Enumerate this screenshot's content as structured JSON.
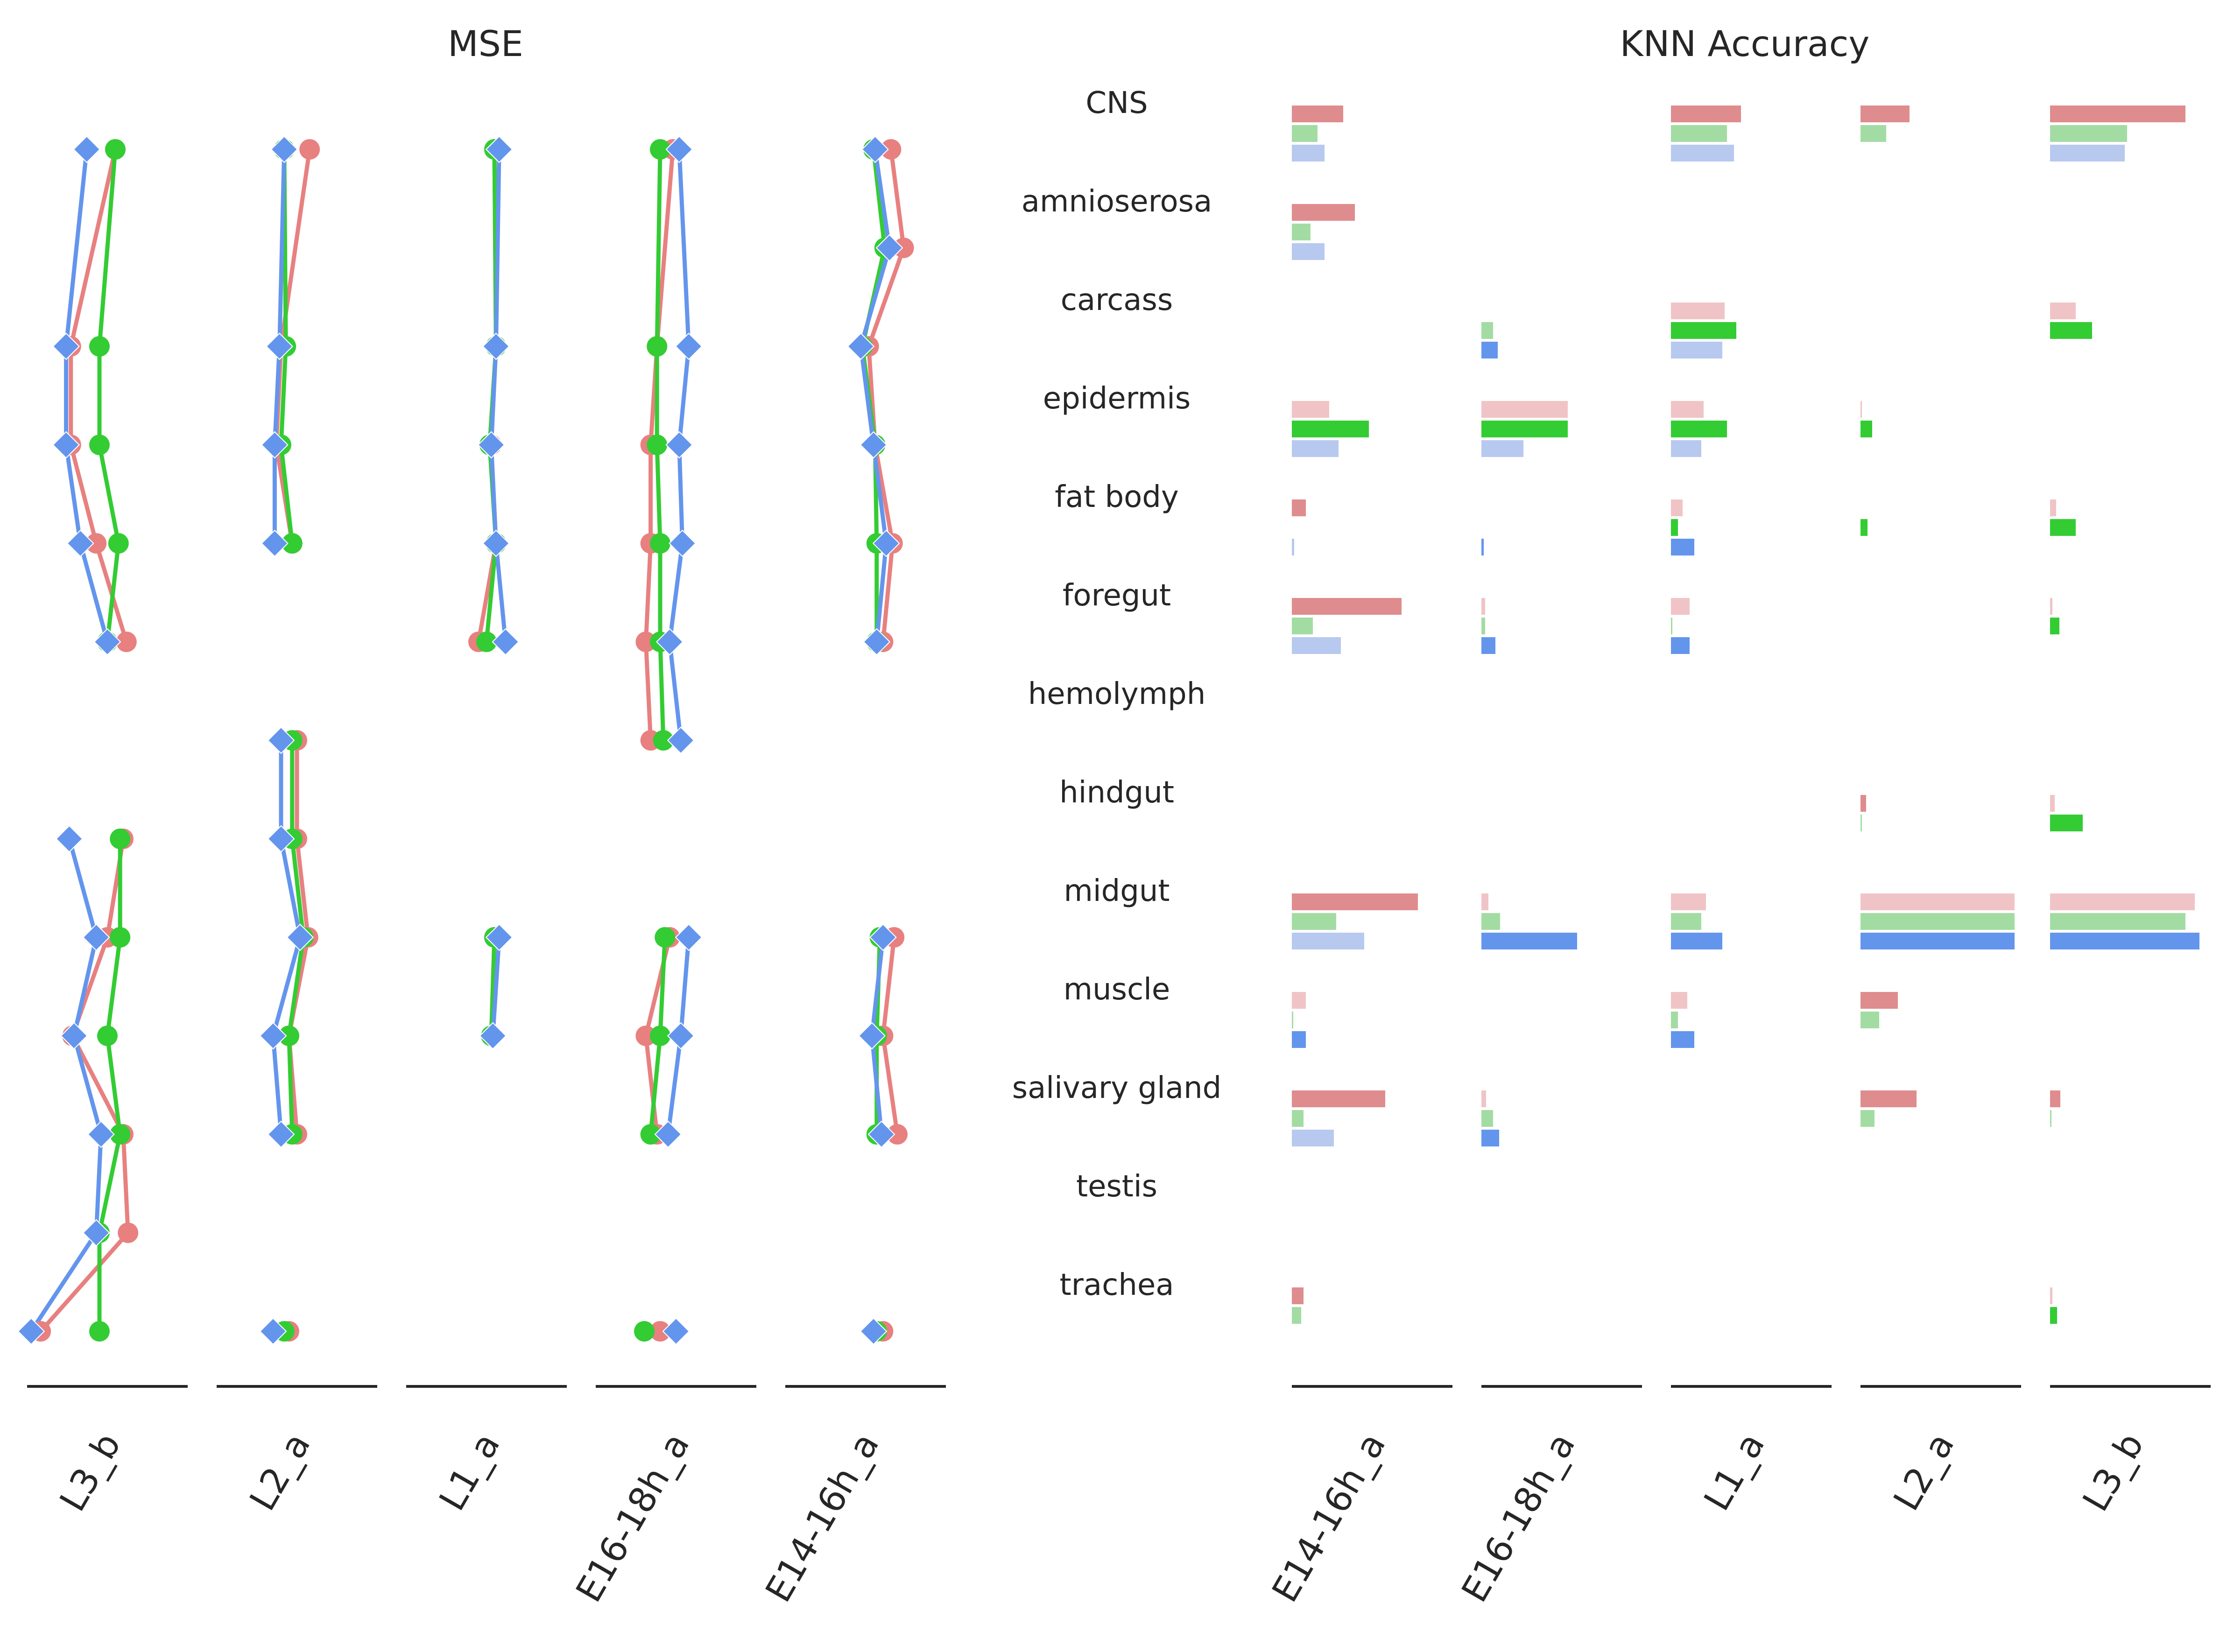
{
  "colors": {
    "red": "#e88080",
    "green": "#33cc33",
    "blue": "#6495ed",
    "red_light": "#f0c4c6",
    "green_light": "#a3dca3",
    "blue_light": "#b7c9ef",
    "red_mid": "#df8c8e",
    "axis": "#262626"
  },
  "chart_data": [
    {
      "type": "line",
      "title": "MSE",
      "markers": {
        "red": "circle",
        "green": "circle",
        "blue": "diamond"
      },
      "rows": [
        "CNS",
        "amnioserosa",
        "carcass",
        "epidermis",
        "fat body",
        "foregut",
        "hemolymph",
        "hindgut",
        "midgut",
        "muscle",
        "salivary gland",
        "testis",
        "trachea"
      ],
      "rows_note_only_visible_labels_shown_in_right_panel": true,
      "panels": [
        {
          "label": "L3_b",
          "series": [
            {
              "color": "red",
              "points": [
                [
                  0.53,
                  0
                ],
                [
                  0.27,
                  2
                ],
                [
                  0.27,
                  3
                ],
                [
                  0.43,
                  4
                ],
                [
                  0.62,
                  5
                ],
                [
                  null,
                  6
                ],
                [
                  null,
                  7
                ],
                [
                  0.5,
                  8
                ],
                [
                  0.28,
                  9
                ],
                [
                  0.6,
                  10
                ],
                [
                  0.63,
                  11
                ],
                [
                  0.08,
                  12
                ]
              ]
            },
            {
              "color": "green",
              "points": [
                [
                  0.55,
                  0
                ],
                [
                  0.45,
                  2
                ],
                [
                  0.45,
                  3
                ],
                [
                  0.57,
                  4
                ],
                [
                  0.5,
                  5
                ],
                [
                  null,
                  6
                ],
                [
                  0.58,
                  7
                ],
                [
                  0.58,
                  8
                ],
                [
                  0.5,
                  9
                ],
                [
                  0.58,
                  10
                ],
                [
                  0.45,
                  11
                ],
                [
                  0.45,
                  12
                ]
              ]
            },
            {
              "color": "blue",
              "points": [
                [
                  0.37,
                  0
                ],
                [
                  0.24,
                  2
                ],
                [
                  0.24,
                  3
                ],
                [
                  0.33,
                  4
                ],
                [
                  0.5,
                  5
                ],
                [
                  null,
                  6
                ],
                [
                  0.26,
                  7
                ],
                [
                  0.43,
                  8
                ],
                [
                  0.29,
                  9
                ],
                [
                  0.46,
                  10
                ],
                [
                  0.43,
                  11
                ],
                [
                  0.02,
                  12
                ]
              ]
            }
          ],
          "row_index_note": "rows indexed by positions 0..13 of the shared tissue grid incl. blank row slots"
        }
      ]
    },
    {
      "type": "bar",
      "title": "KNN Accuracy",
      "categories": [
        "CNS",
        "amnioserosa",
        "carcass",
        "epidermis",
        "fat body",
        "foregut",
        "hemolymph",
        "hindgut",
        "midgut",
        "muscle",
        "salivary gland",
        "testis",
        "trachea"
      ],
      "panels": [
        "E14-16h_a",
        "E16-18h_a",
        "L1_a",
        "L2_a",
        "L3_b"
      ],
      "xlim": [
        0,
        1
      ],
      "series_order": [
        "red",
        "green",
        "blue"
      ]
    }
  ],
  "mse": {
    "title": "MSE",
    "panels": [
      {
        "label": "L3_b"
      },
      {
        "label": "L2_a"
      },
      {
        "label": "L1_a"
      },
      {
        "label": "E16-18h_a"
      },
      {
        "label": "E14-16h_a"
      }
    ]
  },
  "knn": {
    "title": "KNN Accuracy",
    "tissues": [
      "CNS",
      "amnioserosa",
      "carcass",
      "epidermis",
      "fat body",
      "foregut",
      "hemolymph",
      "hindgut",
      "midgut",
      "muscle",
      "salivary gland",
      "testis",
      "trachea"
    ],
    "panels": [
      {
        "label": "E14-16h_a"
      },
      {
        "label": "E16-18h_a"
      },
      {
        "label": "L1_a"
      },
      {
        "label": "L2_a"
      },
      {
        "label": "L3_b"
      }
    ]
  }
}
